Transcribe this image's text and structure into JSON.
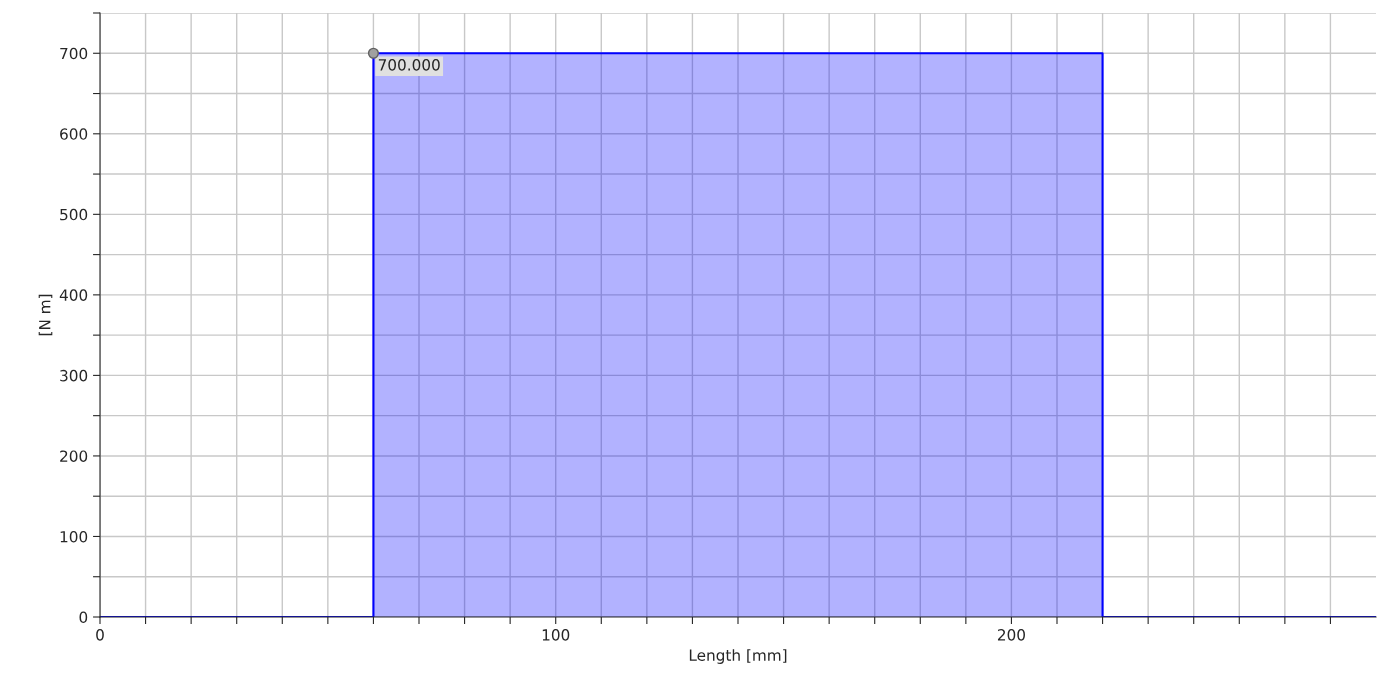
{
  "chart_data": {
    "type": "area",
    "xlabel": "Length [mm]",
    "ylabel": "[N m]",
    "series": [
      {
        "color": "#0000ff",
        "x": [
          0,
          60,
          60,
          220,
          220,
          280
        ],
        "values": [
          0,
          0,
          700,
          700,
          0,
          0
        ]
      }
    ],
    "xlim": [
      0,
      280
    ],
    "ylim": [
      0,
      750
    ],
    "xticks": [
      0,
      {
        "value": 10,
        "label": null
      },
      {
        "value": 20,
        "label": null
      },
      {
        "value": 30,
        "label": null
      },
      {
        "value": 40,
        "label": null
      },
      {
        "value": 50,
        "label": null
      },
      {
        "value": 60,
        "label": null
      },
      {
        "value": 70,
        "label": null
      },
      {
        "value": 80,
        "label": null
      },
      {
        "value": 90,
        "label": null
      },
      100,
      {
        "value": 110,
        "label": null
      },
      {
        "value": 120,
        "label": null
      },
      {
        "value": 130,
        "label": null
      },
      {
        "value": 140,
        "label": null
      },
      {
        "value": 150,
        "label": null
      },
      {
        "value": 160,
        "label": null
      },
      {
        "value": 170,
        "label": null
      },
      {
        "value": 180,
        "label": null
      },
      {
        "value": 190,
        "label": null
      },
      200,
      {
        "value": 210,
        "label": null
      },
      {
        "value": 220,
        "label": null
      },
      {
        "value": 230,
        "label": null
      },
      {
        "value": 240,
        "label": null
      },
      {
        "value": 250,
        "label": null
      },
      {
        "value": 260,
        "label": null
      },
      {
        "value": 270,
        "label": null
      }
    ],
    "yticks": [
      0,
      {
        "value": 50,
        "label": null
      },
      100,
      {
        "value": 150,
        "label": null
      },
      200,
      {
        "value": 250,
        "label": null
      },
      300,
      {
        "value": 350,
        "label": null
      },
      400,
      {
        "value": 450,
        "label": null
      },
      500,
      {
        "value": 550,
        "label": null
      },
      600,
      {
        "value": 650,
        "label": null
      },
      700,
      {
        "value": 750,
        "label": null
      }
    ],
    "grid": true,
    "marker": "none",
    "line_style": "solid",
    "annotations": [
      {
        "text": "700.000",
        "x": 60,
        "y": 700
      }
    ]
  }
}
